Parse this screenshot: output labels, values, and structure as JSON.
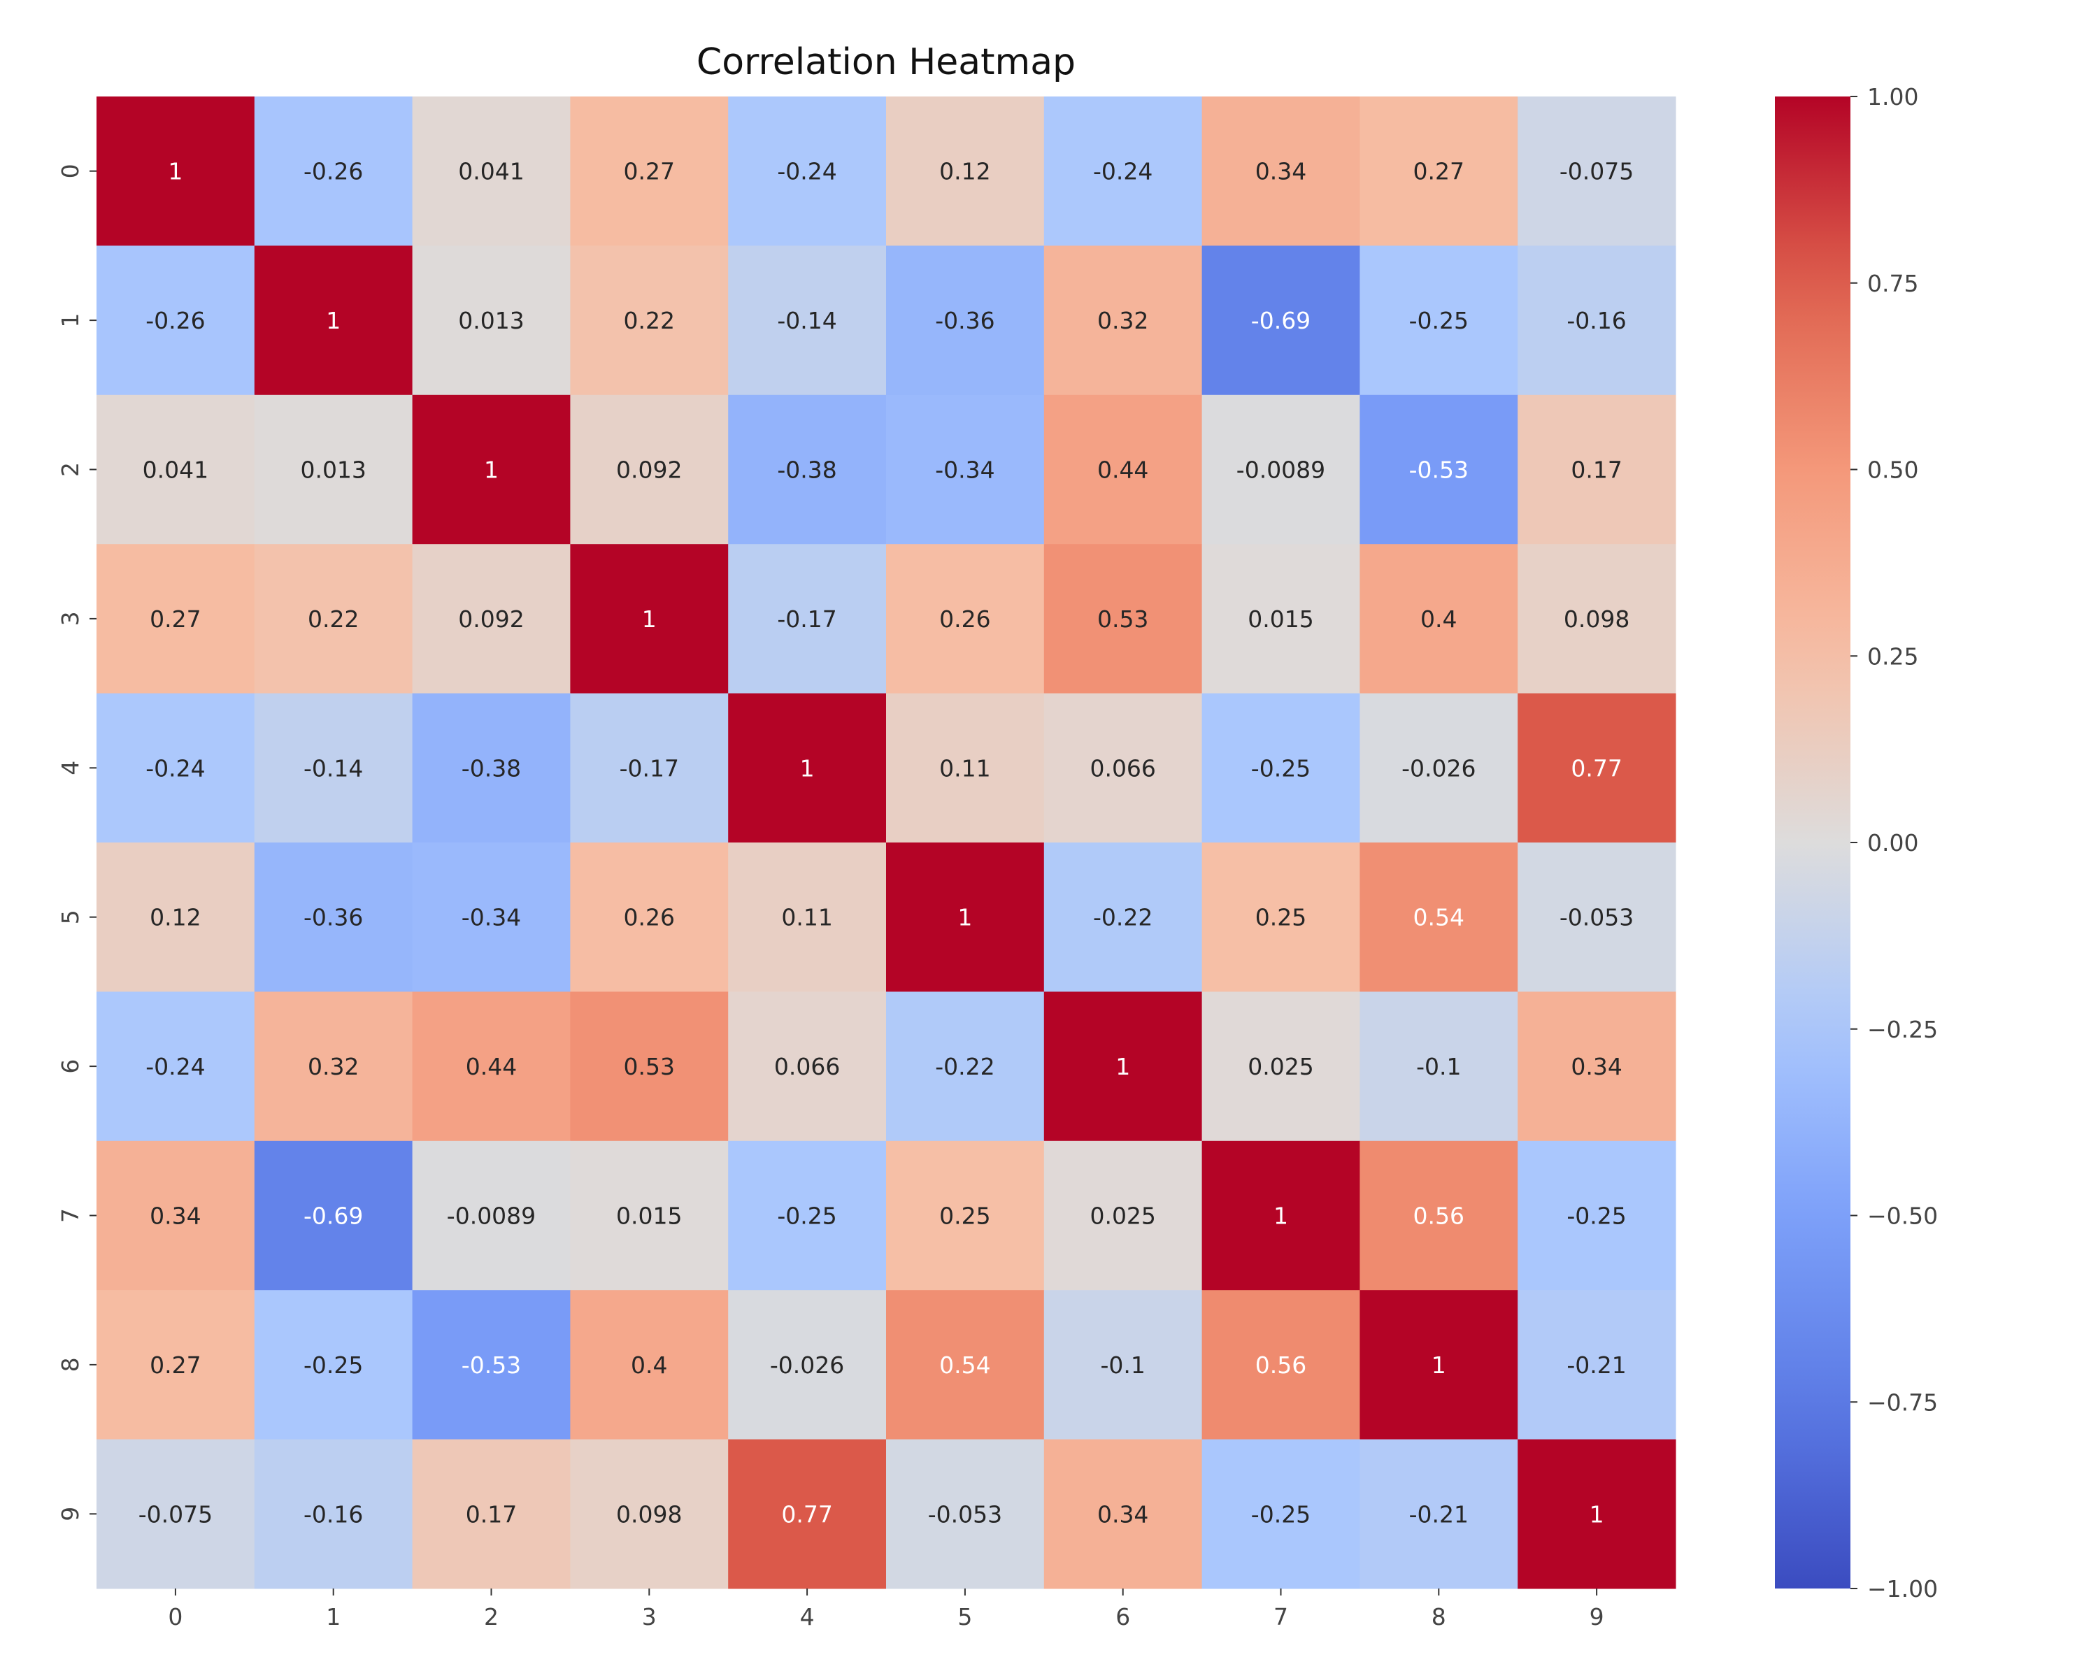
{
  "chart_data": {
    "type": "heatmap",
    "title": "Correlation Heatmap",
    "xlabel": "",
    "ylabel": "",
    "colormap": "coolwarm",
    "vmin": -1,
    "vmax": 1,
    "x_tick_labels": [
      "0",
      "1",
      "2",
      "3",
      "4",
      "5",
      "6",
      "7",
      "8",
      "9"
    ],
    "y_tick_labels": [
      "0",
      "1",
      "2",
      "3",
      "4",
      "5",
      "6",
      "7",
      "8",
      "9"
    ],
    "colorbar_ticks": [
      1.0,
      0.75,
      0.5,
      0.25,
      0.0,
      -0.25,
      -0.5,
      -0.75,
      -1.0
    ],
    "colorbar_tick_labels": [
      "1.00",
      "0.75",
      "0.50",
      "0.25",
      "0.00",
      "−0.25",
      "−0.50",
      "−0.75",
      "−1.00"
    ],
    "annotations": true,
    "values": [
      [
        1,
        -0.26,
        0.041,
        0.27,
        -0.24,
        0.12,
        -0.24,
        0.34,
        0.27,
        -0.075
      ],
      [
        -0.26,
        1,
        0.013,
        0.22,
        -0.14,
        -0.36,
        0.32,
        -0.69,
        -0.25,
        -0.16
      ],
      [
        0.041,
        0.013,
        1,
        0.092,
        -0.38,
        -0.34,
        0.44,
        -0.0089,
        -0.53,
        0.17
      ],
      [
        0.27,
        0.22,
        0.092,
        1,
        -0.17,
        0.26,
        0.53,
        0.015,
        0.4,
        0.098
      ],
      [
        -0.24,
        -0.14,
        -0.38,
        -0.17,
        1,
        0.11,
        0.066,
        -0.25,
        -0.026,
        0.77
      ],
      [
        0.12,
        -0.36,
        -0.34,
        0.26,
        0.11,
        1,
        -0.22,
        0.25,
        0.54,
        -0.053
      ],
      [
        -0.24,
        0.32,
        0.44,
        0.53,
        0.066,
        -0.22,
        1,
        0.025,
        -0.1,
        0.34
      ],
      [
        0.34,
        -0.69,
        -0.0089,
        0.015,
        -0.25,
        0.25,
        0.025,
        1,
        0.56,
        -0.25
      ],
      [
        0.27,
        -0.25,
        -0.53,
        0.4,
        -0.026,
        0.54,
        -0.1,
        0.56,
        1,
        -0.21
      ],
      [
        -0.075,
        -0.16,
        0.17,
        0.098,
        0.77,
        -0.053,
        0.34,
        -0.25,
        -0.21,
        1
      ]
    ]
  }
}
